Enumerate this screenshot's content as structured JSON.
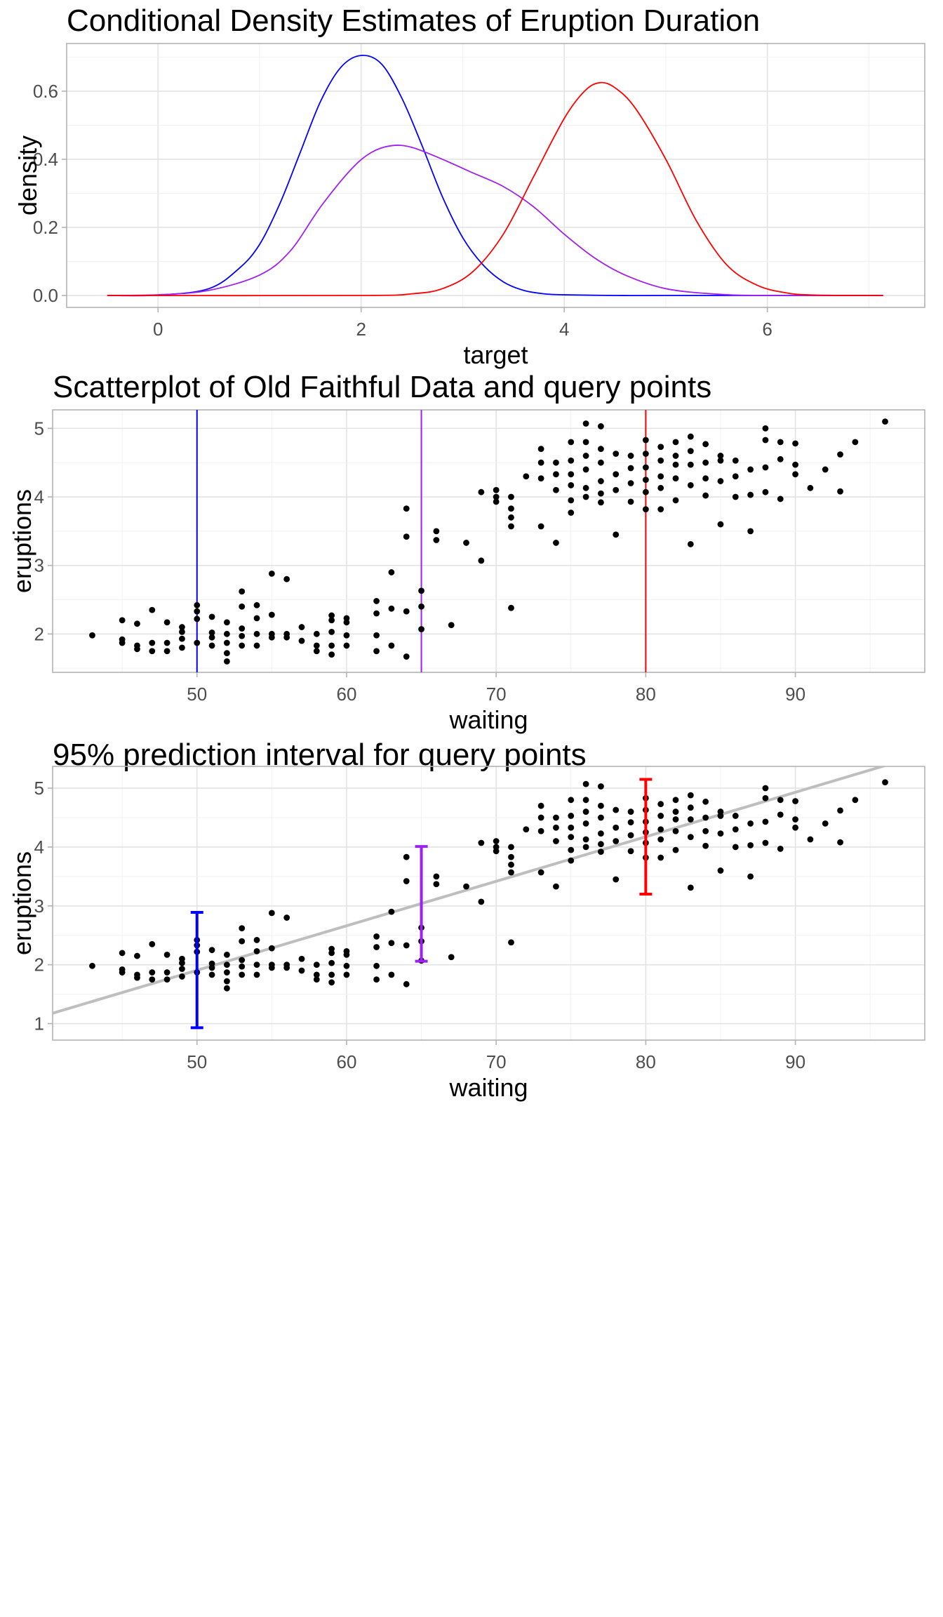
{
  "colors": {
    "blue": "#0000ff",
    "purple": "#a020f0",
    "red": "#ff0000",
    "fit_line": "#bebebe",
    "points": "#000000"
  },
  "chart_data": [
    {
      "type": "line",
      "title": "Conditional Density Estimates of Eruption Duration",
      "xlabel": "target",
      "ylabel": "density",
      "xlim": [
        -0.9,
        7.55
      ],
      "ylim": [
        -0.035,
        0.74
      ],
      "xticks": [
        0,
        2,
        4,
        6
      ],
      "yticks": [
        0.0,
        0.2,
        0.4,
        0.6
      ],
      "ytick_labels": [
        "0.0",
        "0.2",
        "0.4",
        "0.6"
      ],
      "grid": true,
      "series": [
        {
          "color_key": "blue",
          "x": [
            -0.5,
            0,
            0.5,
            0.8,
            1.0,
            1.2,
            1.4,
            1.6,
            1.8,
            2.0,
            2.2,
            2.4,
            2.6,
            2.8,
            3.0,
            3.2,
            3.4,
            3.6,
            3.8,
            4.0,
            4.5,
            5.0,
            6.0,
            7.14
          ],
          "y": [
            0,
            0.001,
            0.02,
            0.08,
            0.15,
            0.27,
            0.42,
            0.57,
            0.67,
            0.705,
            0.68,
            0.58,
            0.44,
            0.29,
            0.17,
            0.09,
            0.04,
            0.015,
            0.005,
            0.002,
            0,
            0,
            0,
            0
          ]
        },
        {
          "color_key": "purple",
          "x": [
            -0.5,
            0,
            0.5,
            1.0,
            1.3,
            1.6,
            1.9,
            2.1,
            2.3,
            2.5,
            2.8,
            3.1,
            3.4,
            3.7,
            4.0,
            4.3,
            4.6,
            5.0,
            5.5,
            6.0,
            7.14
          ],
          "y": [
            0,
            0.002,
            0.015,
            0.06,
            0.13,
            0.26,
            0.37,
            0.42,
            0.44,
            0.435,
            0.4,
            0.36,
            0.32,
            0.26,
            0.18,
            0.11,
            0.06,
            0.02,
            0.004,
            0,
            0
          ]
        },
        {
          "color_key": "red",
          "x": [
            -0.5,
            2.0,
            2.5,
            2.8,
            3.1,
            3.4,
            3.7,
            4.0,
            4.2,
            4.35,
            4.5,
            4.7,
            5.0,
            5.3,
            5.6,
            5.9,
            6.2,
            6.5,
            7.14
          ],
          "y": [
            0,
            0,
            0.005,
            0.02,
            0.07,
            0.18,
            0.35,
            0.52,
            0.6,
            0.625,
            0.61,
            0.55,
            0.4,
            0.22,
            0.09,
            0.03,
            0.007,
            0.001,
            0
          ]
        }
      ]
    },
    {
      "type": "scatter",
      "title": "Scatterplot of Old Faithful Data and query points",
      "xlabel": "waiting",
      "ylabel": "eruptions",
      "xlim": [
        40.35,
        98.65
      ],
      "ylim": [
        1.44,
        5.27
      ],
      "xticks": [
        50,
        60,
        70,
        80,
        90
      ],
      "yticks": [
        2,
        3,
        4,
        5
      ],
      "grid": true,
      "vlines": [
        {
          "x": 50,
          "color_key": "blue"
        },
        {
          "x": 65,
          "color_key": "purple"
        },
        {
          "x": 80,
          "color_key": "red"
        }
      ],
      "points": [
        [
          43,
          1.98
        ],
        [
          45,
          2.2
        ],
        [
          45,
          1.92
        ],
        [
          45,
          1.87
        ],
        [
          46,
          2.15
        ],
        [
          46,
          1.83
        ],
        [
          46,
          1.78
        ],
        [
          47,
          2.35
        ],
        [
          47,
          1.87
        ],
        [
          47,
          1.75
        ],
        [
          48,
          2.17
        ],
        [
          48,
          1.87
        ],
        [
          48,
          1.75
        ],
        [
          49,
          2.03
        ],
        [
          49,
          1.93
        ],
        [
          49,
          2.1
        ],
        [
          49,
          1.8
        ],
        [
          50,
          2.42
        ],
        [
          50,
          2.33
        ],
        [
          50,
          2.22
        ],
        [
          50,
          1.87
        ],
        [
          51,
          2.25
        ],
        [
          51,
          2.02
        ],
        [
          51,
          1.95
        ],
        [
          51,
          1.83
        ],
        [
          52,
          2.17
        ],
        [
          52,
          2.0
        ],
        [
          52,
          1.87
        ],
        [
          52,
          1.72
        ],
        [
          52,
          1.6
        ],
        [
          53,
          2.62
        ],
        [
          53,
          2.4
        ],
        [
          53,
          2.08
        ],
        [
          53,
          1.97
        ],
        [
          53,
          1.83
        ],
        [
          54,
          2.42
        ],
        [
          54,
          2.23
        ],
        [
          54,
          2.0
        ],
        [
          54,
          1.83
        ],
        [
          55,
          2.88
        ],
        [
          55,
          2.28
        ],
        [
          55,
          2.0
        ],
        [
          55,
          1.95
        ],
        [
          56,
          2.8
        ],
        [
          56,
          2.0
        ],
        [
          56,
          1.95
        ],
        [
          57,
          2.1
        ],
        [
          57,
          1.9
        ],
        [
          58,
          2.0
        ],
        [
          58,
          1.83
        ],
        [
          58,
          1.75
        ],
        [
          59,
          2.27
        ],
        [
          59,
          2.2
        ],
        [
          59,
          2.03
        ],
        [
          59,
          1.83
        ],
        [
          59,
          1.7
        ],
        [
          60,
          2.23
        ],
        [
          60,
          2.17
        ],
        [
          60,
          1.98
        ],
        [
          60,
          1.83
        ],
        [
          62,
          2.48
        ],
        [
          62,
          2.3
        ],
        [
          62,
          1.98
        ],
        [
          62,
          1.75
        ],
        [
          63,
          2.9
        ],
        [
          63,
          2.37
        ],
        [
          63,
          1.83
        ],
        [
          64,
          3.83
        ],
        [
          64,
          3.42
        ],
        [
          64,
          2.33
        ],
        [
          64,
          1.67
        ],
        [
          65,
          2.63
        ],
        [
          65,
          2.4
        ],
        [
          65,
          2.07
        ],
        [
          66,
          3.5
        ],
        [
          66,
          3.37
        ],
        [
          67,
          2.13
        ],
        [
          68,
          3.33
        ],
        [
          69,
          4.07
        ],
        [
          69,
          3.07
        ],
        [
          70,
          4.1
        ],
        [
          70,
          4.0
        ],
        [
          70,
          3.93
        ],
        [
          71,
          4.0
        ],
        [
          71,
          3.83
        ],
        [
          71,
          3.7
        ],
        [
          71,
          3.57
        ],
        [
          71,
          2.38
        ],
        [
          72,
          4.3
        ],
        [
          73,
          4.7
        ],
        [
          73,
          4.5
        ],
        [
          73,
          4.27
        ],
        [
          73,
          3.57
        ],
        [
          74,
          4.5
        ],
        [
          74,
          4.33
        ],
        [
          74,
          4.1
        ],
        [
          74,
          3.33
        ],
        [
          75,
          4.8
        ],
        [
          75,
          4.53
        ],
        [
          75,
          4.33
        ],
        [
          75,
          4.17
        ],
        [
          75,
          3.95
        ],
        [
          75,
          3.77
        ],
        [
          76,
          5.07
        ],
        [
          76,
          4.8
        ],
        [
          76,
          4.6
        ],
        [
          76,
          4.4
        ],
        [
          76,
          4.13
        ],
        [
          76,
          4.0
        ],
        [
          77,
          5.03
        ],
        [
          77,
          4.7
        ],
        [
          77,
          4.5
        ],
        [
          77,
          4.23
        ],
        [
          77,
          4.05
        ],
        [
          77,
          3.92
        ],
        [
          78,
          4.63
        ],
        [
          78,
          4.33
        ],
        [
          78,
          4.1
        ],
        [
          78,
          3.45
        ],
        [
          79,
          4.6
        ],
        [
          79,
          4.42
        ],
        [
          79,
          4.2
        ],
        [
          79,
          3.93
        ],
        [
          80,
          4.83
        ],
        [
          80,
          4.63
        ],
        [
          80,
          4.43
        ],
        [
          80,
          4.25
        ],
        [
          80,
          4.07
        ],
        [
          80,
          3.82
        ],
        [
          81,
          4.73
        ],
        [
          81,
          4.53
        ],
        [
          81,
          4.3
        ],
        [
          81,
          4.13
        ],
        [
          81,
          3.82
        ],
        [
          82,
          4.8
        ],
        [
          82,
          4.6
        ],
        [
          82,
          4.47
        ],
        [
          82,
          4.27
        ],
        [
          82,
          3.95
        ],
        [
          83,
          4.88
        ],
        [
          83,
          4.67
        ],
        [
          83,
          4.47
        ],
        [
          83,
          4.17
        ],
        [
          83,
          3.31
        ],
        [
          84,
          4.77
        ],
        [
          84,
          4.5
        ],
        [
          84,
          4.27
        ],
        [
          84,
          4.02
        ],
        [
          85,
          4.6
        ],
        [
          85,
          4.53
        ],
        [
          85,
          4.23
        ],
        [
          85,
          3.6
        ],
        [
          86,
          4.53
        ],
        [
          86,
          4.3
        ],
        [
          86,
          4.0
        ],
        [
          87,
          4.4
        ],
        [
          87,
          4.03
        ],
        [
          87,
          3.5
        ],
        [
          88,
          5.0
        ],
        [
          88,
          4.83
        ],
        [
          88,
          4.43
        ],
        [
          88,
          4.07
        ],
        [
          89,
          4.8
        ],
        [
          89,
          4.55
        ],
        [
          89,
          3.97
        ],
        [
          90,
          4.78
        ],
        [
          90,
          4.47
        ],
        [
          90,
          4.33
        ],
        [
          91,
          4.13
        ],
        [
          92,
          4.4
        ],
        [
          93,
          4.62
        ],
        [
          93,
          4.08
        ],
        [
          94,
          4.8
        ],
        [
          96,
          5.1
        ]
      ]
    },
    {
      "type": "scatter",
      "title": "95% prediction interval for query points",
      "xlabel": "waiting",
      "ylabel": "eruptions",
      "xlim": [
        40.35,
        98.65
      ],
      "ylim": [
        0.72,
        5.37
      ],
      "xticks": [
        50,
        60,
        70,
        80,
        90
      ],
      "yticks": [
        1,
        2,
        3,
        4,
        5
      ],
      "grid": true,
      "fit_line": {
        "intercept": -1.874,
        "slope": 0.0756,
        "color_key": "fit_line"
      },
      "intervals": [
        {
          "x": 50,
          "low": 0.93,
          "high": 2.89,
          "color_key": "blue"
        },
        {
          "x": 65,
          "low": 2.06,
          "high": 4.01,
          "color_key": "purple"
        },
        {
          "x": 80,
          "low": 3.2,
          "high": 5.15,
          "color_key": "red"
        }
      ],
      "points_from": 1
    }
  ]
}
